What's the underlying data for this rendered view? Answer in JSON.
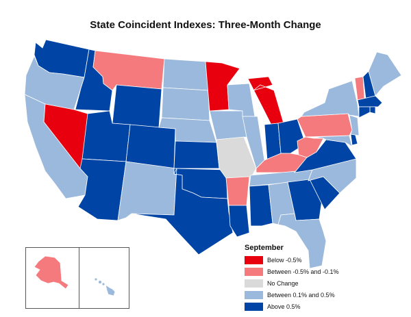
{
  "title": "State Coincident Indexes: Three-Month Change",
  "legend": {
    "title": "September",
    "items": [
      {
        "label": "Below -0.5%",
        "color": "#e8000f"
      },
      {
        "label": "Between -0.5% and -0.1%",
        "color": "#f47a7e"
      },
      {
        "label": "No Change",
        "color": "#dadada"
      },
      {
        "label": "Between 0.1% and 0.5%",
        "color": "#9bb9dc"
      },
      {
        "label": "Above 0.5%",
        "color": "#0045a5"
      }
    ]
  },
  "states": [
    {
      "name": "WA",
      "category": "Above 0.5%"
    },
    {
      "name": "OR",
      "category": "Between 0.1% and 0.5%"
    },
    {
      "name": "CA",
      "category": "Between 0.1% and 0.5%"
    },
    {
      "name": "NV",
      "category": "Below -0.5%"
    },
    {
      "name": "ID",
      "category": "Above 0.5%"
    },
    {
      "name": "MT",
      "category": "Between -0.5% and -0.1%"
    },
    {
      "name": "WY",
      "category": "Above 0.5%"
    },
    {
      "name": "UT",
      "category": "Above 0.5%"
    },
    {
      "name": "AZ",
      "category": "Above 0.5%"
    },
    {
      "name": "CO",
      "category": "Above 0.5%"
    },
    {
      "name": "NM",
      "category": "Between 0.1% and 0.5%"
    },
    {
      "name": "ND",
      "category": "Between 0.1% and 0.5%"
    },
    {
      "name": "SD",
      "category": "Between 0.1% and 0.5%"
    },
    {
      "name": "NE",
      "category": "Between 0.1% and 0.5%"
    },
    {
      "name": "KS",
      "category": "Above 0.5%"
    },
    {
      "name": "OK",
      "category": "Above 0.5%"
    },
    {
      "name": "TX",
      "category": "Above 0.5%"
    },
    {
      "name": "MN",
      "category": "Below -0.5%"
    },
    {
      "name": "IA",
      "category": "Between 0.1% and 0.5%"
    },
    {
      "name": "MO",
      "category": "No Change"
    },
    {
      "name": "AR",
      "category": "Between -0.5% and -0.1%"
    },
    {
      "name": "LA",
      "category": "Above 0.5%"
    },
    {
      "name": "WI",
      "category": "Between 0.1% and 0.5%"
    },
    {
      "name": "IL",
      "category": "Between 0.1% and 0.5%"
    },
    {
      "name": "MI",
      "category": "Below -0.5%"
    },
    {
      "name": "IN",
      "category": "Above 0.5%"
    },
    {
      "name": "OH",
      "category": "Above 0.5%"
    },
    {
      "name": "KY",
      "category": "Between -0.5% and -0.1%"
    },
    {
      "name": "TN",
      "category": "Between 0.1% and 0.5%"
    },
    {
      "name": "MS",
      "category": "Above 0.5%"
    },
    {
      "name": "AL",
      "category": "Between 0.1% and 0.5%"
    },
    {
      "name": "GA",
      "category": "Above 0.5%"
    },
    {
      "name": "FL",
      "category": "Between 0.1% and 0.5%"
    },
    {
      "name": "SC",
      "category": "Above 0.5%"
    },
    {
      "name": "NC",
      "category": "Between 0.1% and 0.5%"
    },
    {
      "name": "VA",
      "category": "Above 0.5%"
    },
    {
      "name": "WV",
      "category": "Between -0.5% and -0.1%"
    },
    {
      "name": "PA",
      "category": "Between -0.5% and -0.1%"
    },
    {
      "name": "NY",
      "category": "Between 0.1% and 0.5%"
    },
    {
      "name": "VT",
      "category": "Between -0.5% and -0.1%"
    },
    {
      "name": "NH",
      "category": "Above 0.5%"
    },
    {
      "name": "ME",
      "category": "Between 0.1% and 0.5%"
    },
    {
      "name": "MA",
      "category": "Above 0.5%"
    },
    {
      "name": "CT",
      "category": "Above 0.5%"
    },
    {
      "name": "RI",
      "category": "Above 0.5%"
    },
    {
      "name": "NJ",
      "category": "Between 0.1% and 0.5%"
    },
    {
      "name": "DE",
      "category": "Above 0.5%"
    },
    {
      "name": "MD",
      "category": "Between 0.1% and 0.5%"
    },
    {
      "name": "AK",
      "category": "Between -0.5% and -0.1%"
    },
    {
      "name": "HI",
      "category": "Between 0.1% and 0.5%"
    }
  ]
}
